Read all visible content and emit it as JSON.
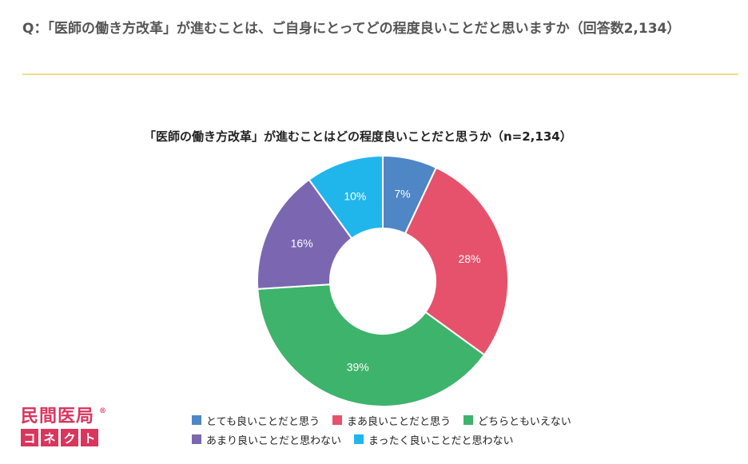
{
  "question": "Q：「医師の働き方改革」が進むことは、ご自身にとってどの程度良いことだと思いますか（回答数2,134）",
  "colors": {
    "divider": "#f2dc8a",
    "brand": "#d9355d"
  },
  "logo": {
    "top_text": "民間医局",
    "bottom_chars": [
      "コ",
      "ネ",
      "ク",
      "ト"
    ]
  },
  "chart_data": {
    "type": "pie",
    "variant": "donut",
    "title": "「医師の働き方改革」が進むことはどの程度良いことだと思うか（n=2,134）",
    "categories": [
      "とても良いことだと思う",
      "まあ良いことだと思う",
      "どちらともいえない",
      "あまり良いことだと思わない",
      "まったく良いことだと思わない"
    ],
    "values": [
      7,
      28,
      39,
      16,
      10
    ],
    "labels": [
      "7%",
      "28%",
      "39%",
      "16%",
      "10%"
    ],
    "colors": [
      "#4e86c6",
      "#e6526b",
      "#3db36b",
      "#7b67b1",
      "#20b6ec"
    ],
    "legend_position": "bottom"
  }
}
